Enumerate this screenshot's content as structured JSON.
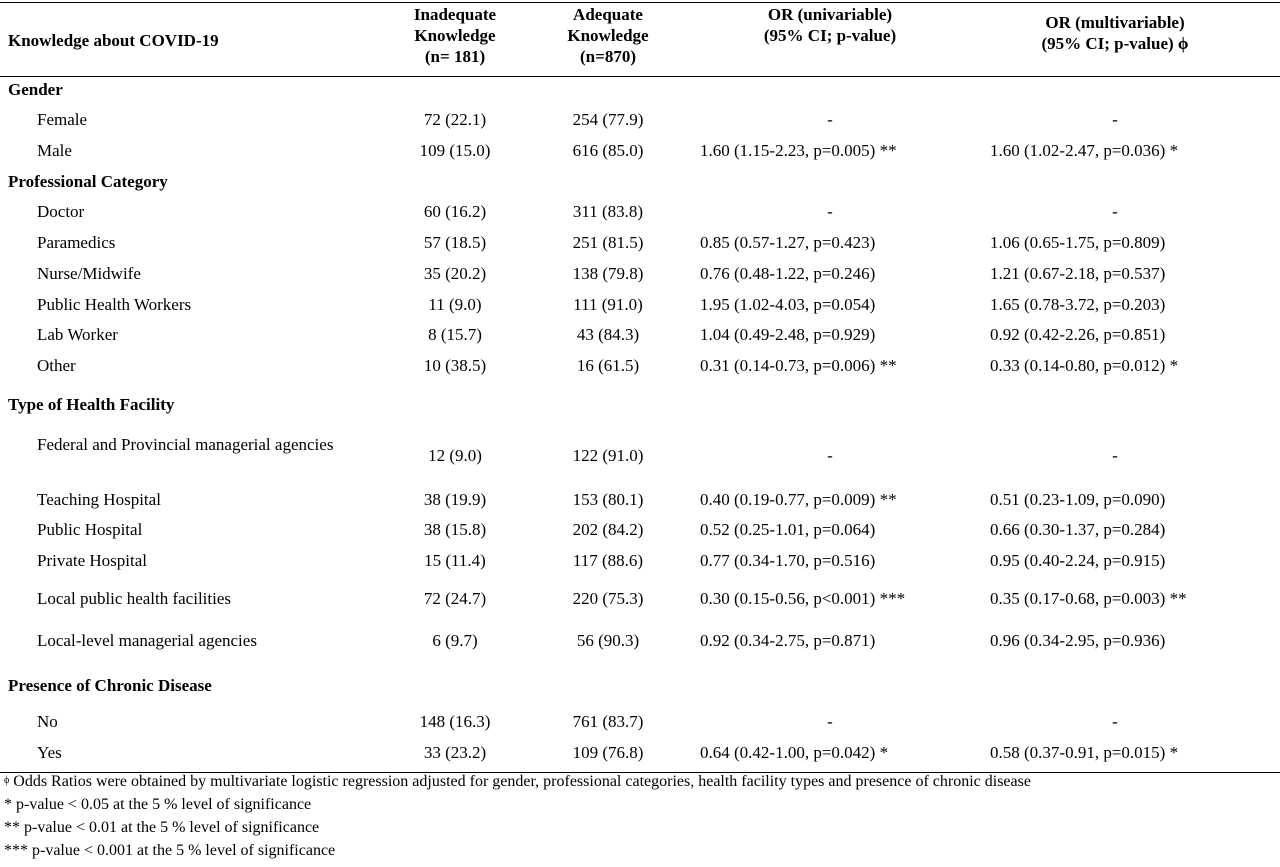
{
  "header": {
    "col0": "Knowledge about COVID-19",
    "col1": [
      "Inadequate",
      "Knowledge",
      "(n= 181)"
    ],
    "col2": [
      "Adequate",
      "Knowledge",
      "(n=870)"
    ],
    "col3": [
      "OR (univariable)",
      "(95% CI; p-value)"
    ],
    "col4": [
      "OR (multivariable)",
      "(95% CI; p-value) ϕ"
    ]
  },
  "rows": [
    {
      "label": "Gender",
      "section": true
    },
    {
      "label": "Female",
      "inadequate": "72 (22.1)",
      "adequate": "254 (77.9)",
      "or_uni": "-",
      "or_multi": "-"
    },
    {
      "label": "Male",
      "inadequate": "109 (15.0)",
      "adequate": "616 (85.0)",
      "or_uni": "1.60 (1.15-2.23, p=0.005) **",
      "or_multi": "1.60 (1.02-2.47, p=0.036) *"
    },
    {
      "label": "Professional Category",
      "section": true
    },
    {
      "label": "Doctor",
      "inadequate": "60 (16.2)",
      "adequate": "311 (83.8)",
      "or_uni": "-",
      "or_multi": "-"
    },
    {
      "label": "Paramedics",
      "inadequate": "57 (18.5)",
      "adequate": "251 (81.5)",
      "or_uni": "0.85 (0.57-1.27, p=0.423)",
      "or_multi": "1.06 (0.65-1.75, p=0.809)"
    },
    {
      "label": "Nurse/Midwife",
      "inadequate": "35 (20.2)",
      "adequate": "138 (79.8)",
      "or_uni": "0.76 (0.48-1.22, p=0.246)",
      "or_multi": "1.21 (0.67-2.18, p=0.537)"
    },
    {
      "label": "Public Health Workers",
      "inadequate": "11 (9.0)",
      "adequate": "111 (91.0)",
      "or_uni": "1.95 (1.02-4.03, p=0.054)",
      "or_multi": "1.65 (0.78-3.72, p=0.203)"
    },
    {
      "label": "Lab Worker",
      "inadequate": "8 (15.7)",
      "adequate": "43 (84.3)",
      "or_uni": "1.04 (0.49-2.48, p=0.929)",
      "or_multi": "0.92 (0.42-2.26, p=0.851)"
    },
    {
      "label": "Other",
      "inadequate": "10 (38.5)",
      "adequate": "16 (61.5)",
      "or_uni": "0.31 (0.14-0.73, p=0.006) **",
      "or_multi": "0.33 (0.14-0.80, p=0.012) *"
    },
    {
      "label": "Type of Health Facility",
      "section": true
    },
    {
      "label": "Federal and Provincial managerial agencies",
      "inadequate": "12 (9.0)",
      "adequate": "122 (91.0)",
      "or_uni": "-",
      "or_multi": "-"
    },
    {
      "label": "Teaching Hospital",
      "inadequate": "38 (19.9)",
      "adequate": "153 (80.1)",
      "or_uni": "0.40 (0.19-0.77, p=0.009) **",
      "or_multi": "0.51 (0.23-1.09, p=0.090)"
    },
    {
      "label": "Public Hospital",
      "inadequate": "38 (15.8)",
      "adequate": "202 (84.2)",
      "or_uni": "0.52 (0.25-1.01, p=0.064)",
      "or_multi": "0.66 (0.30-1.37, p=0.284)"
    },
    {
      "label": "Private Hospital",
      "inadequate": "15 (11.4)",
      "adequate": "117 (88.6)",
      "or_uni": "0.77 (0.34-1.70, p=0.516)",
      "or_multi": "0.95 (0.40-2.24, p=0.915)"
    },
    {
      "label": "Local public health facilities",
      "inadequate": "72 (24.7)",
      "adequate": "220 (75.3)",
      "or_uni": "0.30 (0.15-0.56, p<0.001) ***",
      "or_multi": "0.35 (0.17-0.68, p=0.003) **"
    },
    {
      "label": "Local-level managerial agencies",
      "inadequate": "6 (9.7)",
      "adequate": "56 (90.3)",
      "or_uni": "0.92 (0.34-2.75, p=0.871)",
      "or_multi": "0.96 (0.34-2.95, p=0.936)"
    },
    {
      "label": "Presence of Chronic Disease",
      "section": true
    },
    {
      "label": "No",
      "inadequate": "148 (16.3)",
      "adequate": "761 (83.7)",
      "or_uni": "-",
      "or_multi": "-"
    },
    {
      "label": "Yes",
      "inadequate": "33 (23.2)",
      "adequate": "109 (76.8)",
      "or_uni": "0.64 (0.42-1.00, p=0.042) *",
      "or_multi": "0.58 (0.37-0.91, p=0.015) *"
    }
  ],
  "notes": {
    "phi_marker": "ϕ",
    "phi_text": " Odds Ratios were obtained by multivariate logistic regression adjusted for gender, professional categories, health facility types and presence of chronic disease",
    "n1": "* p-value < 0.05 at the 5 % level of significance",
    "n2": "** p-value < 0.01 at the 5 % level of significance",
    "n3": "*** p-value < 0.001 at the 5 % level of significance"
  }
}
